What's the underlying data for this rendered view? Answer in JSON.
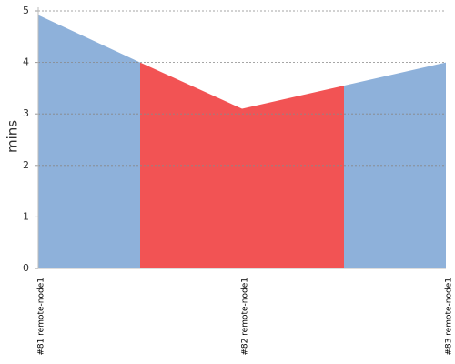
{
  "chart_data": {
    "type": "area",
    "y_label": "mins",
    "categories": [
      "#81 remote-node1",
      null,
      "#82 remote-node1",
      null,
      "#83 remote-node1"
    ],
    "values": [
      4.92,
      4.0,
      3.1,
      3.55,
      4.0
    ],
    "segment_colors": [
      "#8eb1da",
      "#f25354",
      "#f25354",
      "#8eb1da"
    ],
    "ylim": [
      0,
      5
    ],
    "yticks": [
      0,
      1,
      2,
      3,
      4,
      5
    ],
    "grid": true
  }
}
